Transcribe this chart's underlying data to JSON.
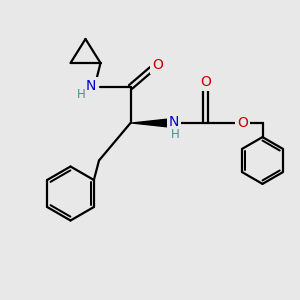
{
  "bg_color": "#e8e8e8",
  "bond_color": "#000000",
  "N_color": "#0000cc",
  "O_color": "#cc0000",
  "H_color": "#4a9090",
  "font_size_atom": 10,
  "line_width": 1.6,
  "fig_size": [
    3.0,
    3.0
  ],
  "xlim": [
    0,
    10
  ],
  "ylim": [
    0,
    10
  ]
}
